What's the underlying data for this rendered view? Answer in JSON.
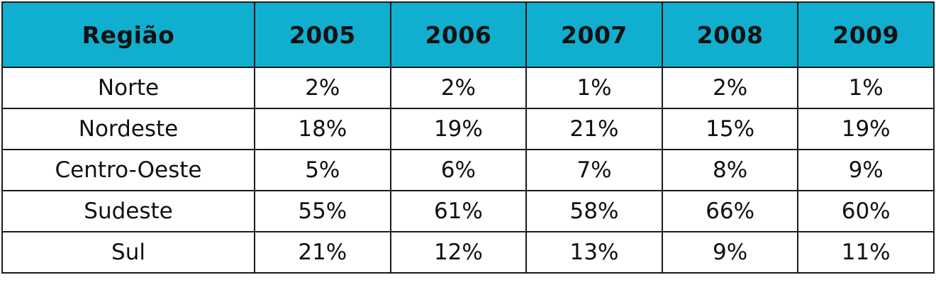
{
  "colors": {
    "header_bg": "#10AFCF",
    "border": "#1a1a1a",
    "text": "#111111"
  },
  "chart_data": {
    "type": "table",
    "columns": [
      "Região",
      "2005",
      "2006",
      "2007",
      "2008",
      "2009"
    ],
    "rows": [
      {
        "region": "Norte",
        "values": [
          "2%",
          "2%",
          "1%",
          "2%",
          "1%"
        ]
      },
      {
        "region": "Nordeste",
        "values": [
          "18%",
          "19%",
          "21%",
          "15%",
          "19%"
        ]
      },
      {
        "region": "Centro-Oeste",
        "values": [
          "5%",
          "6%",
          "7%",
          "8%",
          "9%"
        ]
      },
      {
        "region": "Sudeste",
        "values": [
          "55%",
          "61%",
          "58%",
          "66%",
          "60%"
        ]
      },
      {
        "region": "Sul",
        "values": [
          "21%",
          "12%",
          "13%",
          "9%",
          "11%"
        ]
      }
    ]
  }
}
